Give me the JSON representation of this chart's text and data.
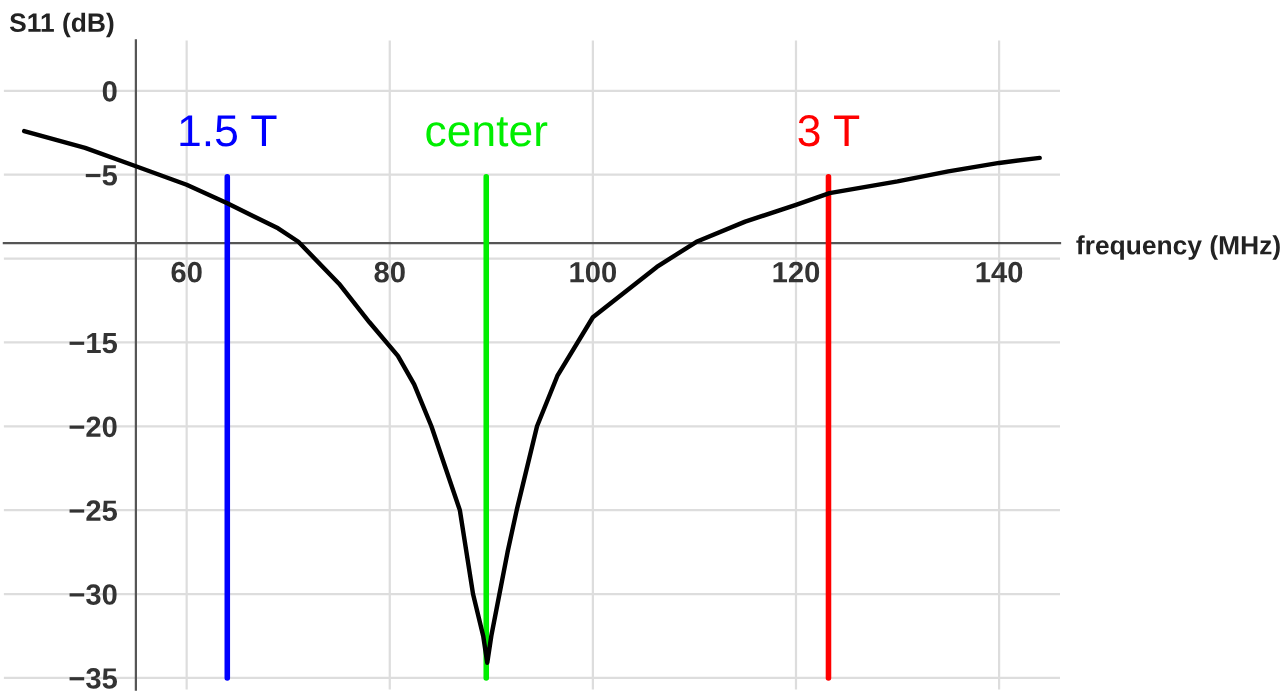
{
  "chart_data": {
    "type": "line",
    "xlabel": "frequency (MHz)",
    "ylabel": "S11 (dB)",
    "x": [
      44,
      50,
      55,
      60,
      64,
      69,
      71,
      75,
      78,
      80.8,
      82.4,
      84.1,
      85.5,
      86.9,
      88.2,
      89.2,
      89.6,
      90.0,
      90.8,
      91.6,
      92.5,
      94.5,
      96.5,
      100,
      106.3,
      110.2,
      115,
      120,
      123.3,
      130,
      135,
      140,
      144
    ],
    "series": [
      {
        "color": "#000000",
        "values": [
          -2.4,
          -3.4,
          -4.5,
          -5.6,
          -6.7,
          -8.2,
          -9.0,
          -11.5,
          -13.8,
          -15.8,
          -17.5,
          -20,
          -22.5,
          -25,
          -30,
          -32.5,
          -34.1,
          -32.5,
          -30,
          -27.5,
          -25,
          -20,
          -17,
          -13.5,
          -10.5,
          -9,
          -7.8,
          -6.8,
          -6.1,
          -5.4,
          -4.8,
          -4.3,
          -4.0
        ]
      }
    ],
    "xlim": [
      42,
      146
    ],
    "ylim": [
      -35.7,
      3
    ],
    "xticks": [
      60,
      80,
      100,
      120,
      140
    ],
    "yticks": [
      {
        "value": 0,
        "label": "0"
      },
      {
        "value": -5,
        "label": "−5"
      },
      {
        "value": -10,
        "label": null
      },
      {
        "value": -15,
        "label": "−15"
      },
      {
        "value": -20,
        "label": "−20"
      },
      {
        "value": -25,
        "label": "−25"
      },
      {
        "value": -30,
        "label": "−30"
      },
      {
        "value": -35,
        "label": "−35"
      }
    ],
    "ref_lines": [
      {
        "axis": "x",
        "value": 64,
        "label": "1.5 T",
        "color": "#0000ff"
      },
      {
        "axis": "x",
        "value": 89.5,
        "label": "center",
        "color": "#00ee00"
      },
      {
        "axis": "x",
        "value": 123.2,
        "label": "3 T",
        "color": "#ff0000"
      }
    ],
    "grid": true,
    "line_style": "solid",
    "marker": "none"
  }
}
